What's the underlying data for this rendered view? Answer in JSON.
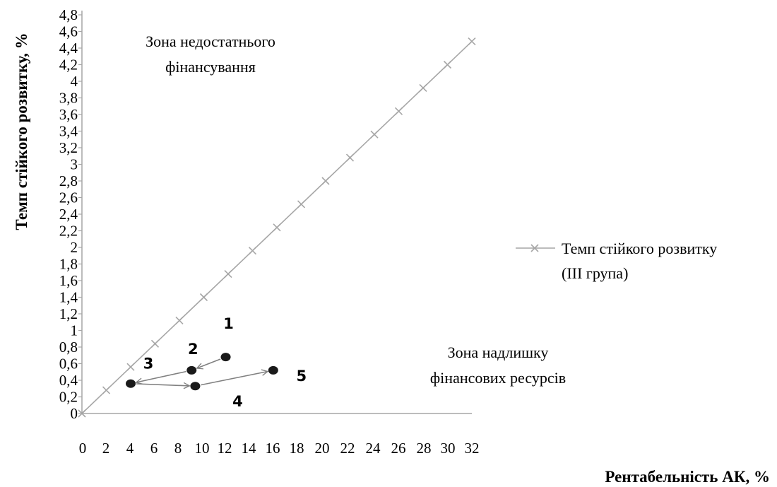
{
  "chart_data": {
    "type": "line",
    "xlabel": "Рентабельність АК,  %",
    "ylabel": "Темп стійкого розвитку, %",
    "x_ticks": [
      "0",
      "2",
      "4",
      "6",
      "8",
      "10",
      "12",
      "14",
      "16",
      "18",
      "20",
      "22",
      "24",
      "26",
      "28",
      "30",
      "32"
    ],
    "y_ticks": [
      "0",
      "0,2",
      "0,4",
      "0,6",
      "0,8",
      "1",
      "1,2",
      "1,4",
      "1,6",
      "1,8",
      "2",
      "2,2",
      "2,4",
      "2,6",
      "2,8",
      "3",
      "3,2",
      "3,4",
      "3,6",
      "3,8",
      "4",
      "4,2",
      "4,4",
      "4,6",
      "4,8"
    ],
    "xlim": [
      0,
      32
    ],
    "ylim": [
      0,
      4.8
    ],
    "grid": false,
    "legend_position": "right",
    "series": [
      {
        "name": "Темп стійкого розвитку (ІІІ група)",
        "legend_lines": [
          "Темп стійкого розвитку",
          "(ІІІ група)"
        ],
        "color": "#a6a6a6",
        "marker": "x",
        "x": [
          0,
          2,
          4,
          6,
          8,
          10,
          12,
          14,
          16,
          18,
          20,
          22,
          24,
          26,
          28,
          30,
          32
        ],
        "y": [
          0,
          0.28,
          0.56,
          0.84,
          1.12,
          1.4,
          1.68,
          1.96,
          2.24,
          2.52,
          2.8,
          3.08,
          3.36,
          3.64,
          3.92,
          4.2,
          4.48
        ]
      }
    ],
    "points": [
      {
        "label": "1",
        "x": 11.8,
        "y": 0.68
      },
      {
        "label": "2",
        "x": 9.0,
        "y": 0.52
      },
      {
        "label": "3",
        "x": 4.0,
        "y": 0.36
      },
      {
        "label": "4",
        "x": 9.3,
        "y": 0.33
      },
      {
        "label": "5",
        "x": 15.7,
        "y": 0.52
      }
    ],
    "arrows": [
      {
        "from": "1",
        "to": "2"
      },
      {
        "from": "2",
        "to": "3"
      },
      {
        "from": "3",
        "to": "4"
      },
      {
        "from": "4",
        "to": "5"
      }
    ],
    "annotations": [
      {
        "lines": [
          "Зона недостатнього",
          "фінансування"
        ]
      },
      {
        "lines": [
          "Зона надлишку",
          "фінансових ресурсів"
        ]
      }
    ],
    "colors": {
      "axis": "#a6a6a6",
      "points": "#1a1a1a",
      "arrows": "#808080"
    }
  }
}
